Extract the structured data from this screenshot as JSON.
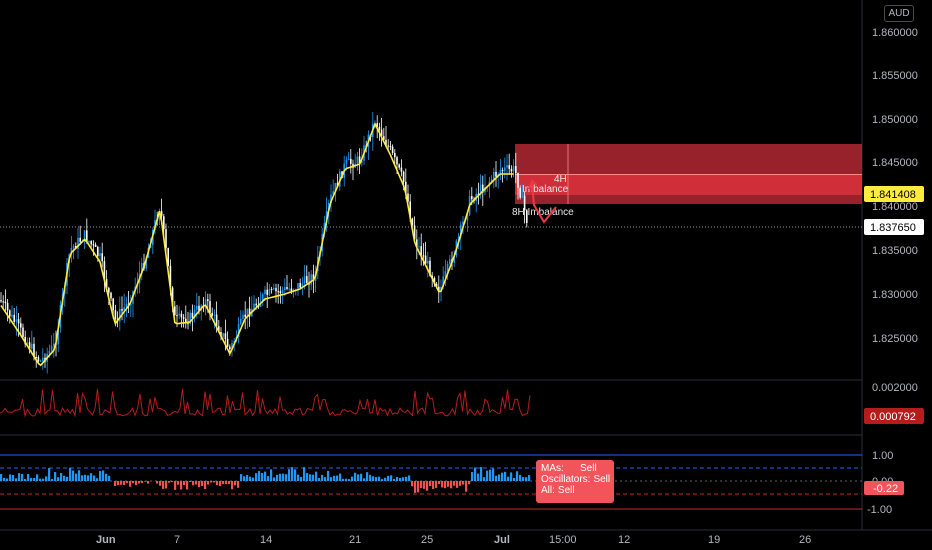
{
  "currency": "AUD",
  "price_axis": {
    "labels": [
      "1.860000",
      "1.855000",
      "1.850000",
      "1.845000",
      "1.840000",
      "1.835000",
      "1.830000",
      "1.825000"
    ],
    "current_price": "1.837650",
    "marked_price": "1.841408"
  },
  "indicator1": {
    "axis_label": "0.002000",
    "value": "0.000792"
  },
  "indicator2": {
    "axis_labels": [
      "1.00",
      "0.00",
      "-1.00"
    ],
    "value": "-0.22"
  },
  "technical_rating": {
    "rows": [
      {
        "key": "MAs:",
        "value": "Sell"
      },
      {
        "key": "Oscillators:",
        "value": "Sell"
      },
      {
        "key": "All:",
        "value": "Sell"
      }
    ]
  },
  "zones": {
    "zone_4h_label_line1": "4H",
    "zone_4h_label_line2": "Imbalance",
    "zone_8h_label": "8H Imbalance"
  },
  "time_axis": [
    "Jun",
    "7",
    "14",
    "21",
    "25",
    "Jul",
    "15:00",
    "12",
    "19",
    "26"
  ],
  "colors": {
    "up": "#2196f3",
    "down": "#ffffff",
    "ma": "#ffeb3b",
    "zone": "#f23645",
    "indicator_line": "#b71c1c",
    "hist_pos": "#2196f3",
    "hist_neg": "#ef5350"
  }
}
